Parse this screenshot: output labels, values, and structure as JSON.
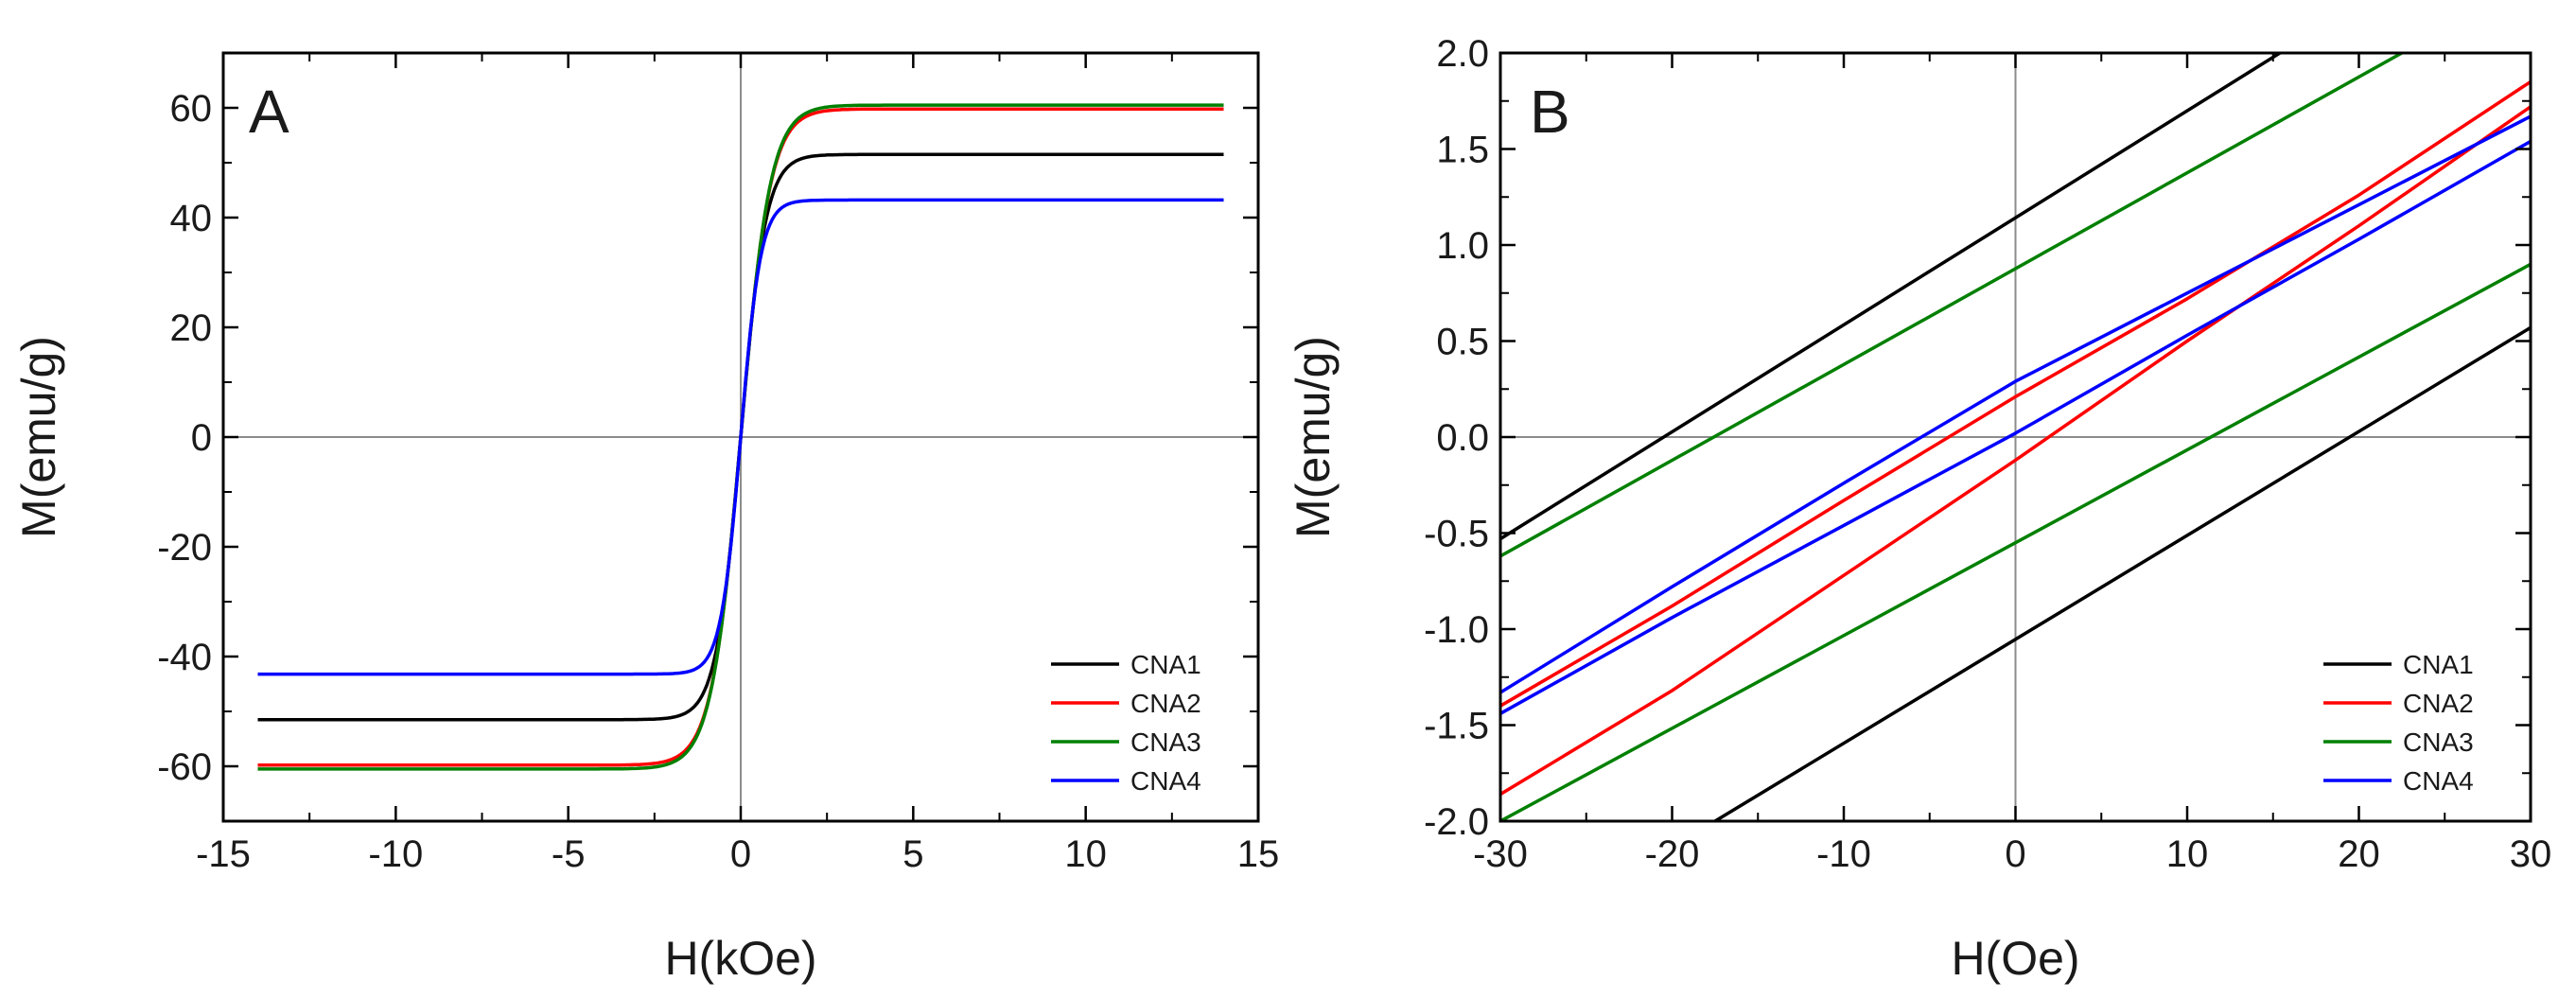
{
  "chart_data": [
    {
      "type": "line",
      "panel_label": "A",
      "xlabel": "H(kOe)",
      "ylabel": "M(emu/g)",
      "xlim": [
        -15,
        15
      ],
      "ylim": [
        -70,
        70
      ],
      "xticks": [
        -15,
        -10,
        -5,
        0,
        5,
        10,
        15
      ],
      "yticks": [
        -60,
        -40,
        -20,
        0,
        20,
        40,
        60
      ],
      "xtick_labels": [
        "-15",
        "-10",
        "-5",
        "0",
        "5",
        "10",
        "15"
      ],
      "ytick_labels": [
        "-60",
        "-40",
        "-20",
        "0",
        "20",
        "40",
        "60"
      ],
      "reference_lines": {
        "x": 0,
        "y": 0
      },
      "grid": false,
      "legend_position": "bottom-right",
      "series": [
        {
          "name": "CNA1",
          "color": "#000000",
          "model": "tanh",
          "saturation_emu_g": 51.5,
          "field_scale_koe": 0.72,
          "x_range_koe": [
            -14,
            14
          ]
        },
        {
          "name": "CNA2",
          "color": "#ff0000",
          "model": "tanh",
          "saturation_emu_g": 59.8,
          "field_scale_koe": 0.85,
          "x_range_koe": [
            -14,
            14
          ]
        },
        {
          "name": "CNA3",
          "color": "#008000",
          "model": "tanh",
          "saturation_emu_g": 60.5,
          "field_scale_koe": 0.86,
          "x_range_koe": [
            -14,
            14
          ]
        },
        {
          "name": "CNA4",
          "color": "#0000ff",
          "model": "tanh",
          "saturation_emu_g": 43.2,
          "field_scale_koe": 0.58,
          "x_range_koe": [
            -14,
            14
          ]
        }
      ]
    },
    {
      "type": "line",
      "panel_label": "B",
      "xlabel": "H(Oe)",
      "ylabel": "M(emu/g)",
      "xlim": [
        -30,
        30
      ],
      "ylim": [
        -2.0,
        2.0
      ],
      "xticks": [
        -30,
        -20,
        -10,
        0,
        10,
        20,
        30
      ],
      "yticks": [
        -2.0,
        -1.5,
        -1.0,
        -0.5,
        0.0,
        0.5,
        1.0,
        1.5,
        2.0
      ],
      "xtick_labels": [
        "-30",
        "-20",
        "-10",
        "0",
        "10",
        "20",
        "30"
      ],
      "ytick_labels": [
        "-2.0",
        "-1.5",
        "-1.0",
        "-0.5",
        "0.0",
        "0.5",
        "1.0",
        "1.5",
        "2.0"
      ],
      "reference_lines": {
        "x": 0,
        "y": 0
      },
      "grid": false,
      "legend_position": "bottom-right",
      "series": [
        {
          "name": "CNA1",
          "color": "#000000",
          "branches": [
            {
              "x": [
                -30,
                15.4
              ],
              "y": [
                -0.53,
                2.0
              ]
            },
            {
              "x": [
                -17.5,
                30
              ],
              "y": [
                -2.0,
                0.57
              ]
            }
          ]
        },
        {
          "name": "CNA2",
          "color": "#ff0000",
          "branches": [
            {
              "x": [
                -30,
                -20,
                -10,
                0,
                10,
                20,
                30
              ],
              "y": [
                -1.4,
                -0.88,
                -0.33,
                0.21,
                0.72,
                1.26,
                1.85
              ]
            },
            {
              "x": [
                -30,
                -20,
                -10,
                0,
                10,
                20,
                30
              ],
              "y": [
                -1.86,
                -1.32,
                -0.72,
                -0.12,
                0.5,
                1.1,
                1.72
              ]
            }
          ]
        },
        {
          "name": "CNA3",
          "color": "#008000",
          "branches": [
            {
              "x": [
                -30,
                22.5
              ],
              "y": [
                -0.62,
                2.0
              ]
            },
            {
              "x": [
                -30,
                30
              ],
              "y": [
                -2.0,
                0.9
              ]
            }
          ]
        },
        {
          "name": "CNA4",
          "color": "#0000ff",
          "branches": [
            {
              "x": [
                -30,
                -20,
                -10,
                0,
                10,
                20,
                30
              ],
              "y": [
                -1.33,
                -0.78,
                -0.24,
                0.29,
                0.75,
                1.21,
                1.67
              ]
            },
            {
              "x": [
                -30,
                -20,
                -10,
                0,
                10,
                20,
                30
              ],
              "y": [
                -1.44,
                -0.94,
                -0.46,
                0.02,
                0.53,
                1.03,
                1.54
              ]
            }
          ]
        }
      ]
    }
  ]
}
